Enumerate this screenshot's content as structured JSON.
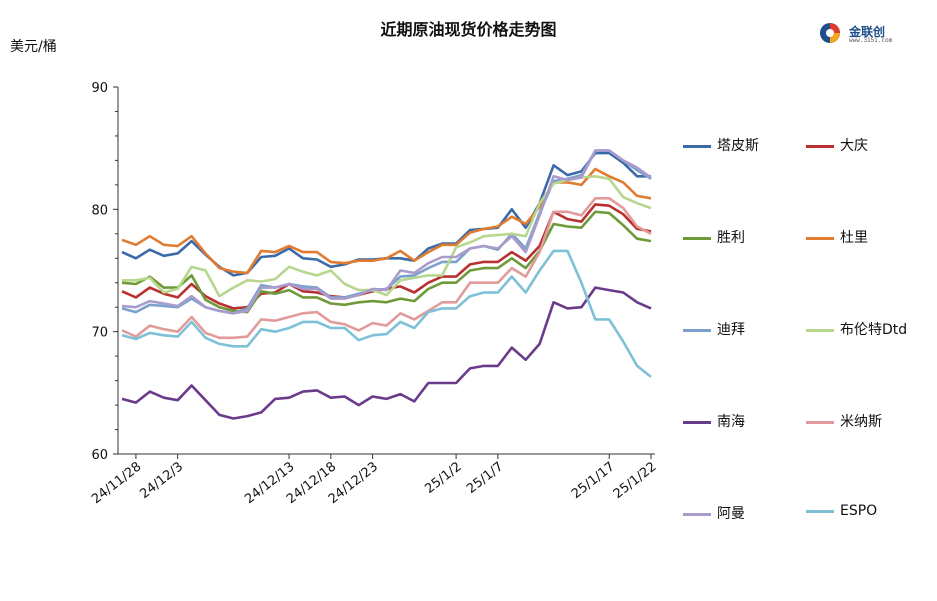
{
  "chart_data": {
    "type": "line",
    "title": "近期原油现货价格走势图",
    "ylabel": "美元/桶",
    "ylim": [
      60,
      90
    ],
    "yticks": [
      "60",
      "70",
      "80",
      "90"
    ],
    "xticks": [
      "24/11/28",
      "24/12/3",
      "24/12/8",
      "24/12/13",
      "24/12/18",
      "24/12/23",
      "24/12/28",
      "25/1/2",
      "25/1/7",
      "25/1/12",
      "25/1/17",
      "25/1/22"
    ],
    "legend_position": "right",
    "grid": false,
    "x": [
      "24/11/27",
      "24/11/28",
      "24/11/29",
      "24/12/2",
      "24/12/3",
      "24/12/4",
      "24/12/5",
      "24/12/6",
      "24/12/9",
      "24/12/10",
      "24/12/11",
      "24/12/12",
      "24/12/13",
      "24/12/16",
      "24/12/17",
      "24/12/18",
      "24/12/19",
      "24/12/20",
      "24/12/23",
      "24/12/24",
      "24/12/26",
      "24/12/27",
      "24/12/30",
      "24/12/31",
      "25/1/2",
      "25/1/3",
      "25/1/6",
      "25/1/7",
      "25/1/8",
      "25/1/9",
      "25/1/10",
      "25/1/13",
      "25/1/14",
      "25/1/15",
      "25/1/16",
      "25/1/17",
      "25/1/20",
      "25/1/21",
      "25/1/22"
    ],
    "series": [
      {
        "name": "塔皮斯",
        "color": "#3b6aa8",
        "values": [
          76.5,
          76.0,
          76.7,
          76.2,
          76.4,
          77.4,
          76.3,
          75.3,
          74.6,
          74.8,
          76.1,
          76.2,
          76.8,
          76.0,
          75.9,
          75.3,
          75.5,
          75.9,
          75.9,
          76.0,
          76.0,
          75.8,
          76.8,
          77.2,
          77.2,
          78.3,
          78.4,
          78.5,
          80.0,
          78.5,
          80.5,
          83.6,
          82.8,
          83.1,
          84.6,
          84.6,
          83.8,
          82.7,
          82.7
        ]
      },
      {
        "name": "大庆",
        "color": "#b83030",
        "values": [
          73.3,
          72.8,
          73.6,
          73.1,
          72.8,
          73.9,
          72.9,
          72.3,
          71.9,
          72.0,
          73.1,
          73.2,
          73.9,
          73.3,
          73.2,
          72.9,
          72.8,
          73.0,
          73.3,
          73.5,
          73.7,
          73.2,
          74.0,
          74.5,
          74.5,
          75.5,
          75.7,
          75.7,
          76.5,
          75.8,
          77.0,
          79.8,
          79.2,
          79.0,
          80.4,
          80.3,
          79.6,
          78.4,
          78.2
        ]
      },
      {
        "name": "胜利",
        "color": "#6f9a3a",
        "values": [
          74.0,
          73.9,
          74.5,
          73.6,
          73.6,
          74.6,
          72.6,
          72.0,
          71.7,
          71.6,
          73.3,
          73.1,
          73.4,
          72.8,
          72.8,
          72.3,
          72.2,
          72.4,
          72.5,
          72.4,
          72.7,
          72.5,
          73.5,
          74.0,
          74.0,
          75.0,
          75.2,
          75.2,
          76.0,
          75.2,
          76.6,
          78.8,
          78.6,
          78.5,
          79.8,
          79.7,
          78.7,
          77.6,
          77.4
        ]
      },
      {
        "name": "杜里",
        "color": "#e07b30",
        "values": [
          77.5,
          77.1,
          77.8,
          77.1,
          77.0,
          77.8,
          76.4,
          75.2,
          74.9,
          74.8,
          76.6,
          76.5,
          77.0,
          76.5,
          76.5,
          75.7,
          75.6,
          75.8,
          75.8,
          76.0,
          76.6,
          75.8,
          76.5,
          77.1,
          77.1,
          78.1,
          78.4,
          78.6,
          79.4,
          78.8,
          80.2,
          82.2,
          82.2,
          82.0,
          83.3,
          82.7,
          82.2,
          81.1,
          80.9
        ]
      },
      {
        "name": "迪拜",
        "color": "#7aa0cc",
        "values": [
          71.9,
          71.6,
          72.2,
          72.1,
          72.0,
          72.7,
          72.0,
          71.7,
          71.5,
          71.9,
          73.8,
          73.6,
          73.9,
          73.7,
          73.6,
          72.8,
          72.8,
          73.1,
          73.4,
          73.5,
          74.5,
          74.6,
          75.2,
          75.7,
          75.7,
          76.8,
          77.0,
          76.7,
          78.0,
          76.8,
          79.7,
          82.3,
          82.5,
          82.8,
          84.8,
          84.8,
          84.0,
          83.2,
          82.5
        ]
      },
      {
        "name": "布伦特Dtd",
        "color": "#b7d68e",
        "values": [
          74.2,
          74.2,
          74.4,
          73.2,
          73.5,
          75.3,
          75.0,
          72.9,
          73.6,
          74.2,
          74.1,
          74.3,
          75.3,
          74.9,
          74.6,
          75.0,
          73.9,
          73.4,
          73.4,
          73.0,
          74.2,
          74.4,
          74.6,
          74.6,
          76.9,
          77.3,
          77.8,
          77.9,
          78.0,
          77.8,
          80.5,
          82.1,
          82.4,
          82.6,
          82.7,
          82.5,
          81.0,
          80.5,
          80.1
        ]
      },
      {
        "name": "南海",
        "color": "#6a3b8a",
        "values": [
          64.5,
          64.2,
          65.1,
          64.6,
          64.4,
          65.6,
          64.4,
          63.2,
          62.9,
          63.1,
          63.4,
          64.5,
          64.6,
          65.1,
          65.2,
          64.6,
          64.7,
          64.0,
          64.7,
          64.5,
          64.9,
          64.3,
          65.8,
          65.8,
          65.8,
          67.0,
          67.2,
          67.2,
          68.7,
          67.7,
          69.0,
          72.4,
          71.9,
          72.0,
          73.6,
          73.4,
          73.2,
          72.4,
          71.9
        ]
      },
      {
        "name": "米纳斯",
        "color": "#e29a9a",
        "values": [
          70.1,
          69.6,
          70.5,
          70.2,
          70.0,
          71.2,
          69.9,
          69.5,
          69.5,
          69.6,
          71.0,
          70.9,
          71.2,
          71.5,
          71.6,
          70.8,
          70.6,
          70.1,
          70.7,
          70.5,
          71.5,
          71.0,
          71.7,
          72.4,
          72.4,
          74.0,
          74.0,
          74.0,
          75.2,
          74.5,
          76.5,
          79.8,
          79.8,
          79.5,
          80.9,
          80.9,
          80.1,
          78.6,
          78.0
        ]
      },
      {
        "name": "阿曼",
        "color": "#a99ccc",
        "values": [
          72.1,
          72.0,
          72.5,
          72.3,
          72.1,
          72.9,
          72.0,
          71.7,
          71.5,
          71.7,
          73.6,
          73.6,
          73.9,
          73.5,
          73.5,
          72.7,
          72.7,
          73.0,
          73.5,
          73.4,
          75.0,
          74.8,
          75.6,
          76.1,
          76.1,
          76.8,
          77.0,
          76.8,
          77.8,
          76.5,
          79.5,
          82.7,
          82.4,
          82.6,
          84.8,
          84.8,
          84.0,
          83.4,
          82.6
        ]
      },
      {
        "name": "ESPO",
        "color": "#7ec0d8",
        "values": [
          69.7,
          69.4,
          69.9,
          69.7,
          69.6,
          70.8,
          69.5,
          69.0,
          68.8,
          68.8,
          70.2,
          70.0,
          70.3,
          70.8,
          70.8,
          70.3,
          70.3,
          69.3,
          69.7,
          69.8,
          70.8,
          70.3,
          71.6,
          71.9,
          71.9,
          72.9,
          73.2,
          73.2,
          74.5,
          73.2,
          75.0,
          76.6,
          76.6,
          74.0,
          71.0,
          71.0,
          69.2,
          67.2,
          66.3
        ]
      }
    ]
  },
  "header": {
    "logo_text": "金联创",
    "logo_sub": "www.315i.com"
  }
}
